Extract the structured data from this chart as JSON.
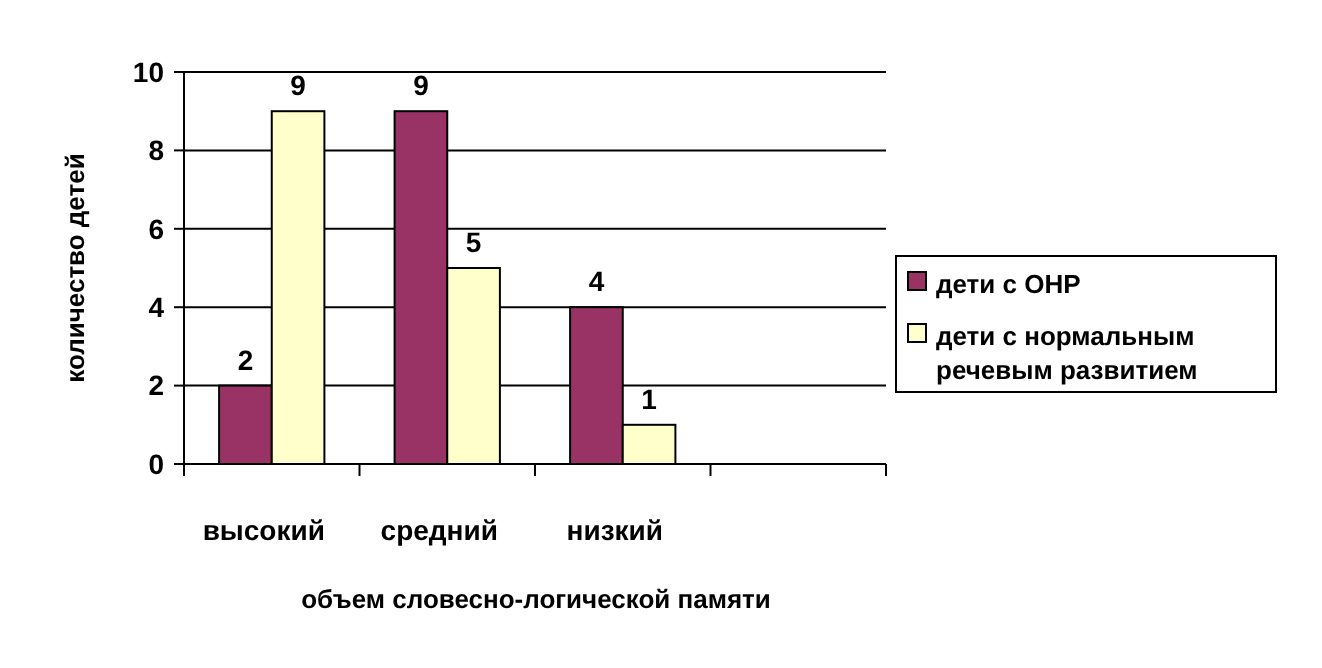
{
  "chart_data": {
    "type": "bar",
    "xlabel": "объем словесно-логической памяти",
    "ylabel": "количество детей",
    "categories": [
      "высокий",
      "средний",
      "низкий",
      null
    ],
    "series": [
      {
        "name": "дети с ОНР",
        "color": "#993366",
        "values": [
          2,
          9,
          4,
          null
        ]
      },
      {
        "name": "дети с нормальным речевым развитием",
        "color": "#ffffcc",
        "values": [
          9,
          5,
          1,
          null
        ]
      }
    ],
    "ylim": [
      0,
      10
    ],
    "yticks": [
      0,
      2,
      4,
      6,
      8,
      10
    ],
    "grid": "y",
    "legend": "right",
    "data_labels": true
  }
}
